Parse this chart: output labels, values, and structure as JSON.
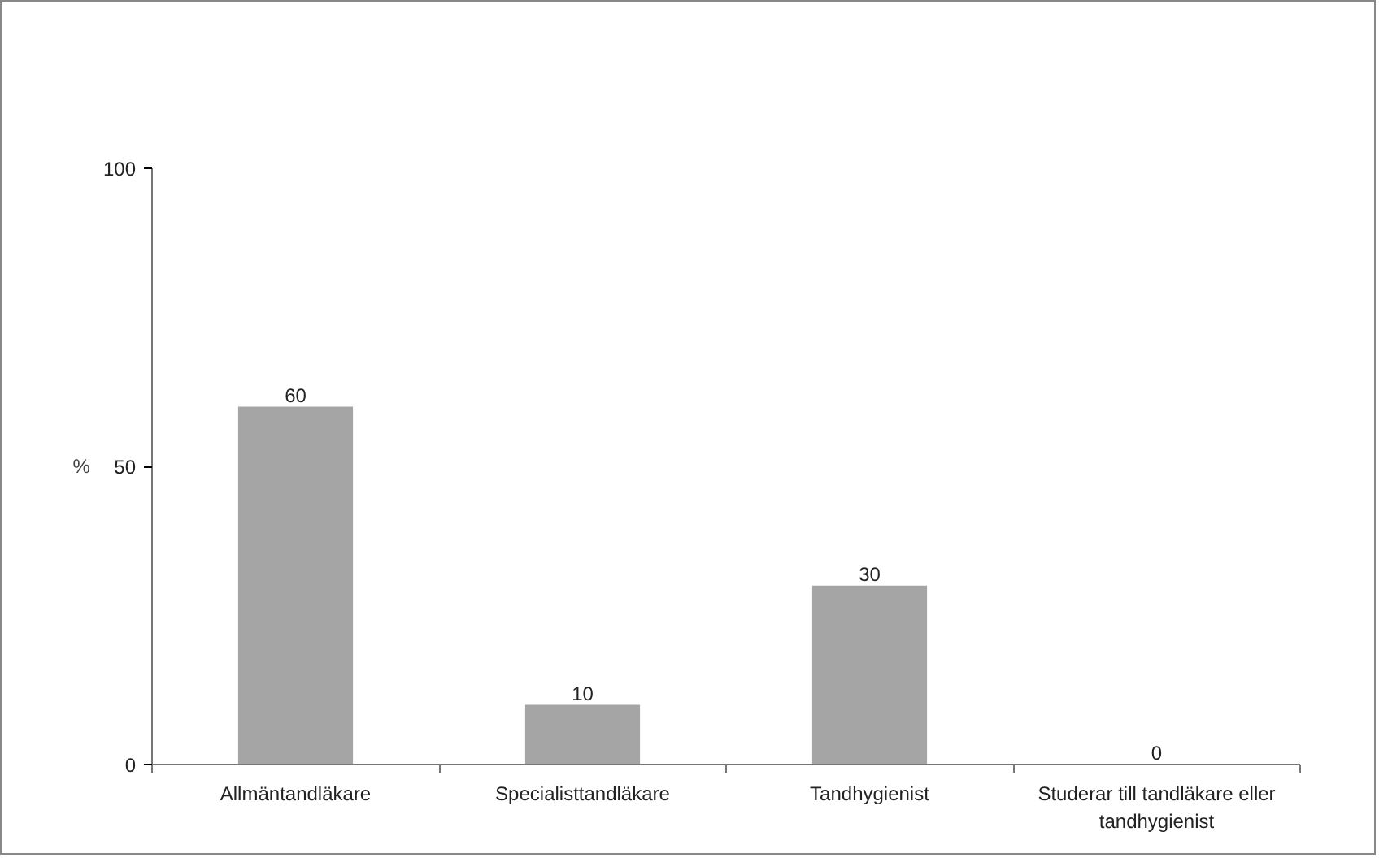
{
  "chart_data": {
    "type": "bar",
    "ylabel": "%",
    "categories": [
      "Allmäntandläkare",
      "Specialisttandläkare",
      "Tandhygienist",
      "Studerar till tandläkare eller tandhygienist"
    ],
    "values": [
      60,
      10,
      30,
      0
    ],
    "color": "#a5a5a5",
    "ylim": [
      0,
      100
    ],
    "yticks": [
      0,
      50,
      100
    ],
    "grid": false,
    "data_labels": true
  }
}
